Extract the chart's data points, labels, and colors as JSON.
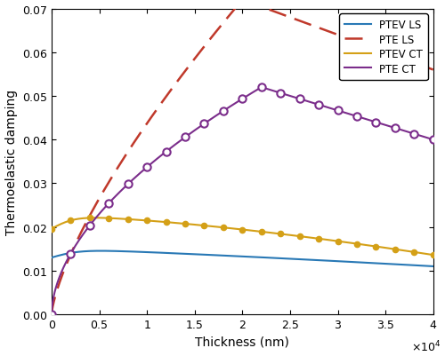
{
  "xlabel": "Thickness (nm)",
  "ylabel": "Thermoelastic damping",
  "xlim": [
    0,
    40000
  ],
  "ylim": [
    0,
    0.07
  ],
  "yticks": [
    0,
    0.01,
    0.02,
    0.03,
    0.04,
    0.05,
    0.06,
    0.07
  ],
  "xticks": [
    0,
    5000,
    10000,
    15000,
    20000,
    25000,
    30000,
    35000,
    40000
  ],
  "xtick_labels": [
    "0",
    "0.5",
    "1",
    "1.5",
    "2",
    "2.5",
    "3",
    "3.5",
    "4"
  ],
  "xtick_scale_label": "\\times10^{4}",
  "legend": [
    "PTEV LS",
    "PTE LS",
    "PTEV CT",
    "PTE CT"
  ],
  "colors": {
    "PTEV_LS": "#2878b5",
    "PTE_LS": "#c0392b",
    "PTEV_CT": "#d4a017",
    "PTE_CT": "#7b2d8b"
  },
  "n_markers": 21
}
